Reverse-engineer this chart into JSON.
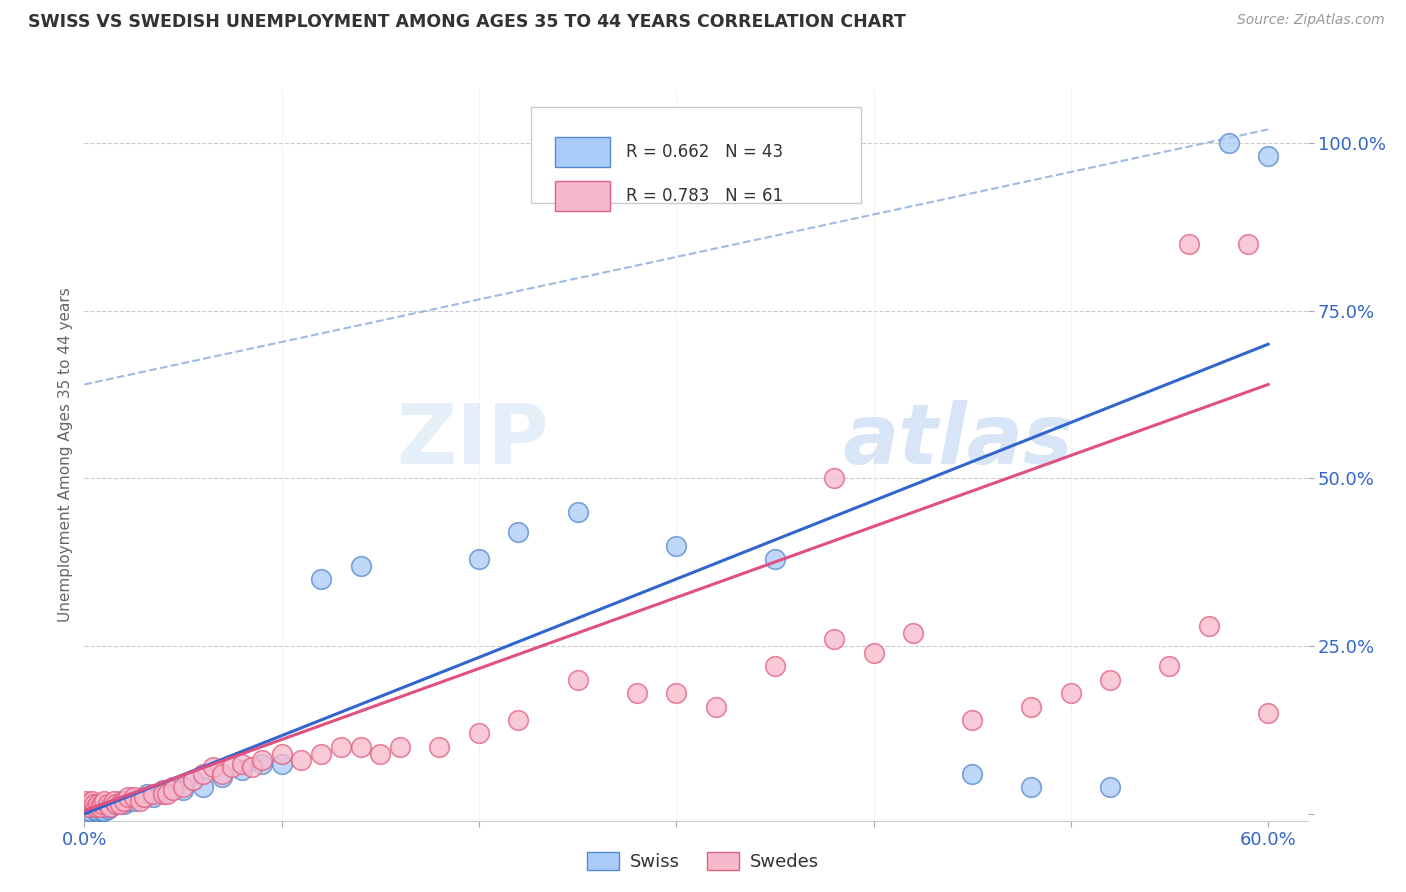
{
  "title": "SWISS VS SWEDISH UNEMPLOYMENT AMONG AGES 35 TO 44 YEARS CORRELATION CHART",
  "source": "Source: ZipAtlas.com",
  "ylabel": "Unemployment Among Ages 35 to 44 years",
  "xlim": [
    0.0,
    0.62
  ],
  "ylim": [
    -0.01,
    1.08
  ],
  "swiss_color": "#aaccf8",
  "swedes_color": "#f8b8cc",
  "swiss_edge_color": "#5588cc",
  "swedes_edge_color": "#e06080",
  "swiss_line_color": "#3366cc",
  "swedes_line_color": "#e05080",
  "dash_line_color": "#88aadd",
  "swiss_R": 0.662,
  "swiss_N": 43,
  "swedes_R": 0.783,
  "swedes_N": 61,
  "background_color": "#ffffff",
  "grid_color": "#cccccc",
  "watermark_color": "#ccddf5",
  "swiss_scatter": [
    [
      0.001,
      0.015
    ],
    [
      0.002,
      0.005
    ],
    [
      0.003,
      0.005
    ],
    [
      0.004,
      0.01
    ],
    [
      0.005,
      0.01
    ],
    [
      0.006,
      0.005
    ],
    [
      0.007,
      0.005
    ],
    [
      0.008,
      0.01
    ],
    [
      0.009,
      0.005
    ],
    [
      0.01,
      0.005
    ],
    [
      0.011,
      0.01
    ],
    [
      0.012,
      0.008
    ],
    [
      0.013,
      0.01
    ],
    [
      0.015,
      0.015
    ],
    [
      0.016,
      0.015
    ],
    [
      0.018,
      0.02
    ],
    [
      0.02,
      0.015
    ],
    [
      0.022,
      0.02
    ],
    [
      0.025,
      0.02
    ],
    [
      0.03,
      0.025
    ],
    [
      0.032,
      0.03
    ],
    [
      0.035,
      0.025
    ],
    [
      0.04,
      0.035
    ],
    [
      0.045,
      0.04
    ],
    [
      0.05,
      0.035
    ],
    [
      0.055,
      0.05
    ],
    [
      0.06,
      0.04
    ],
    [
      0.07,
      0.055
    ],
    [
      0.08,
      0.065
    ],
    [
      0.09,
      0.075
    ],
    [
      0.1,
      0.075
    ],
    [
      0.12,
      0.35
    ],
    [
      0.14,
      0.37
    ],
    [
      0.2,
      0.38
    ],
    [
      0.22,
      0.42
    ],
    [
      0.25,
      0.45
    ],
    [
      0.3,
      0.4
    ],
    [
      0.35,
      0.38
    ],
    [
      0.45,
      0.06
    ],
    [
      0.48,
      0.04
    ],
    [
      0.52,
      0.04
    ],
    [
      0.58,
      1.0
    ],
    [
      0.6,
      0.98
    ]
  ],
  "swedes_scatter": [
    [
      0.001,
      0.02
    ],
    [
      0.002,
      0.01
    ],
    [
      0.003,
      0.015
    ],
    [
      0.004,
      0.02
    ],
    [
      0.005,
      0.015
    ],
    [
      0.006,
      0.01
    ],
    [
      0.007,
      0.015
    ],
    [
      0.008,
      0.01
    ],
    [
      0.009,
      0.015
    ],
    [
      0.01,
      0.02
    ],
    [
      0.012,
      0.015
    ],
    [
      0.013,
      0.01
    ],
    [
      0.015,
      0.02
    ],
    [
      0.016,
      0.015
    ],
    [
      0.018,
      0.015
    ],
    [
      0.02,
      0.02
    ],
    [
      0.022,
      0.025
    ],
    [
      0.025,
      0.025
    ],
    [
      0.028,
      0.02
    ],
    [
      0.03,
      0.025
    ],
    [
      0.035,
      0.03
    ],
    [
      0.04,
      0.03
    ],
    [
      0.042,
      0.03
    ],
    [
      0.045,
      0.035
    ],
    [
      0.05,
      0.04
    ],
    [
      0.055,
      0.05
    ],
    [
      0.06,
      0.06
    ],
    [
      0.065,
      0.07
    ],
    [
      0.07,
      0.06
    ],
    [
      0.075,
      0.07
    ],
    [
      0.08,
      0.075
    ],
    [
      0.085,
      0.07
    ],
    [
      0.09,
      0.08
    ],
    [
      0.1,
      0.09
    ],
    [
      0.11,
      0.08
    ],
    [
      0.12,
      0.09
    ],
    [
      0.13,
      0.1
    ],
    [
      0.14,
      0.1
    ],
    [
      0.15,
      0.09
    ],
    [
      0.16,
      0.1
    ],
    [
      0.18,
      0.1
    ],
    [
      0.2,
      0.12
    ],
    [
      0.22,
      0.14
    ],
    [
      0.25,
      0.2
    ],
    [
      0.28,
      0.18
    ],
    [
      0.3,
      0.18
    ],
    [
      0.32,
      0.16
    ],
    [
      0.35,
      0.22
    ],
    [
      0.38,
      0.26
    ],
    [
      0.4,
      0.24
    ],
    [
      0.42,
      0.27
    ],
    [
      0.45,
      0.14
    ],
    [
      0.48,
      0.16
    ],
    [
      0.5,
      0.18
    ],
    [
      0.38,
      0.5
    ],
    [
      0.52,
      0.2
    ],
    [
      0.55,
      0.22
    ],
    [
      0.57,
      0.28
    ],
    [
      0.56,
      0.85
    ],
    [
      0.59,
      0.85
    ],
    [
      0.6,
      0.15
    ]
  ],
  "swiss_trend": [
    0.0,
    0.0,
    0.6,
    0.7
  ],
  "swedes_trend": [
    0.0,
    0.005,
    0.6,
    0.64
  ],
  "dash_line": [
    0.0,
    0.64,
    0.6,
    1.02
  ]
}
